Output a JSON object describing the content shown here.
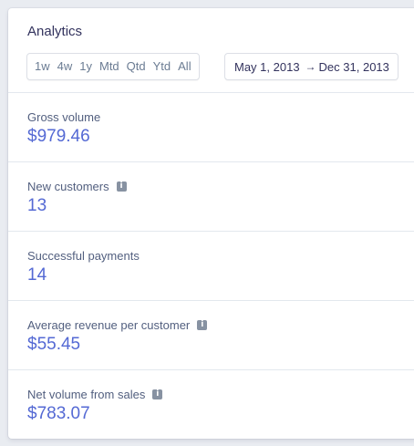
{
  "header": {
    "title": "Analytics",
    "ranges": [
      "1w",
      "4w",
      "1y",
      "Mtd",
      "Qtd",
      "Ytd",
      "All"
    ],
    "date_start": "May 1, 2013",
    "date_end": "Dec 31, 2013"
  },
  "metrics": [
    {
      "label": "Gross volume",
      "value": "$979.46",
      "info": false
    },
    {
      "label": "New customers",
      "value": "13",
      "info": true
    },
    {
      "label": "Successful payments",
      "value": "14",
      "info": false
    },
    {
      "label": "Average revenue per customer",
      "value": "$55.45",
      "info": true
    },
    {
      "label": "Net volume from sales",
      "value": "$783.07",
      "info": true
    }
  ],
  "icons": {
    "info": "info-icon",
    "arrow": "arrow-right-icon"
  },
  "colors": {
    "value": "#5469d4",
    "label": "#525f7f",
    "title": "#32325d"
  }
}
